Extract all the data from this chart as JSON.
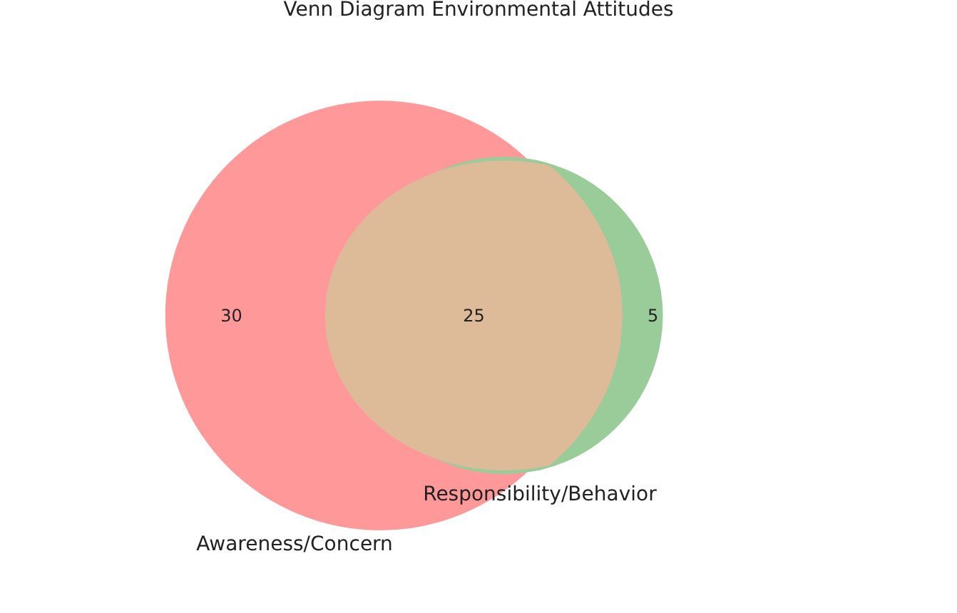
{
  "chart_data": {
    "type": "other",
    "title": "Venn Diagram Environmental Attitudes",
    "categories": [
      null,
      null,
      null
    ],
    "values": [
      30,
      25,
      5
    ],
    "colors": [
      "#ff9999",
      "#ddbb99",
      "#99cc99"
    ],
    "data_labels": true,
    "annotations": [
      "Awareness/Concern",
      "Responsibility/Behavior"
    ]
  }
}
